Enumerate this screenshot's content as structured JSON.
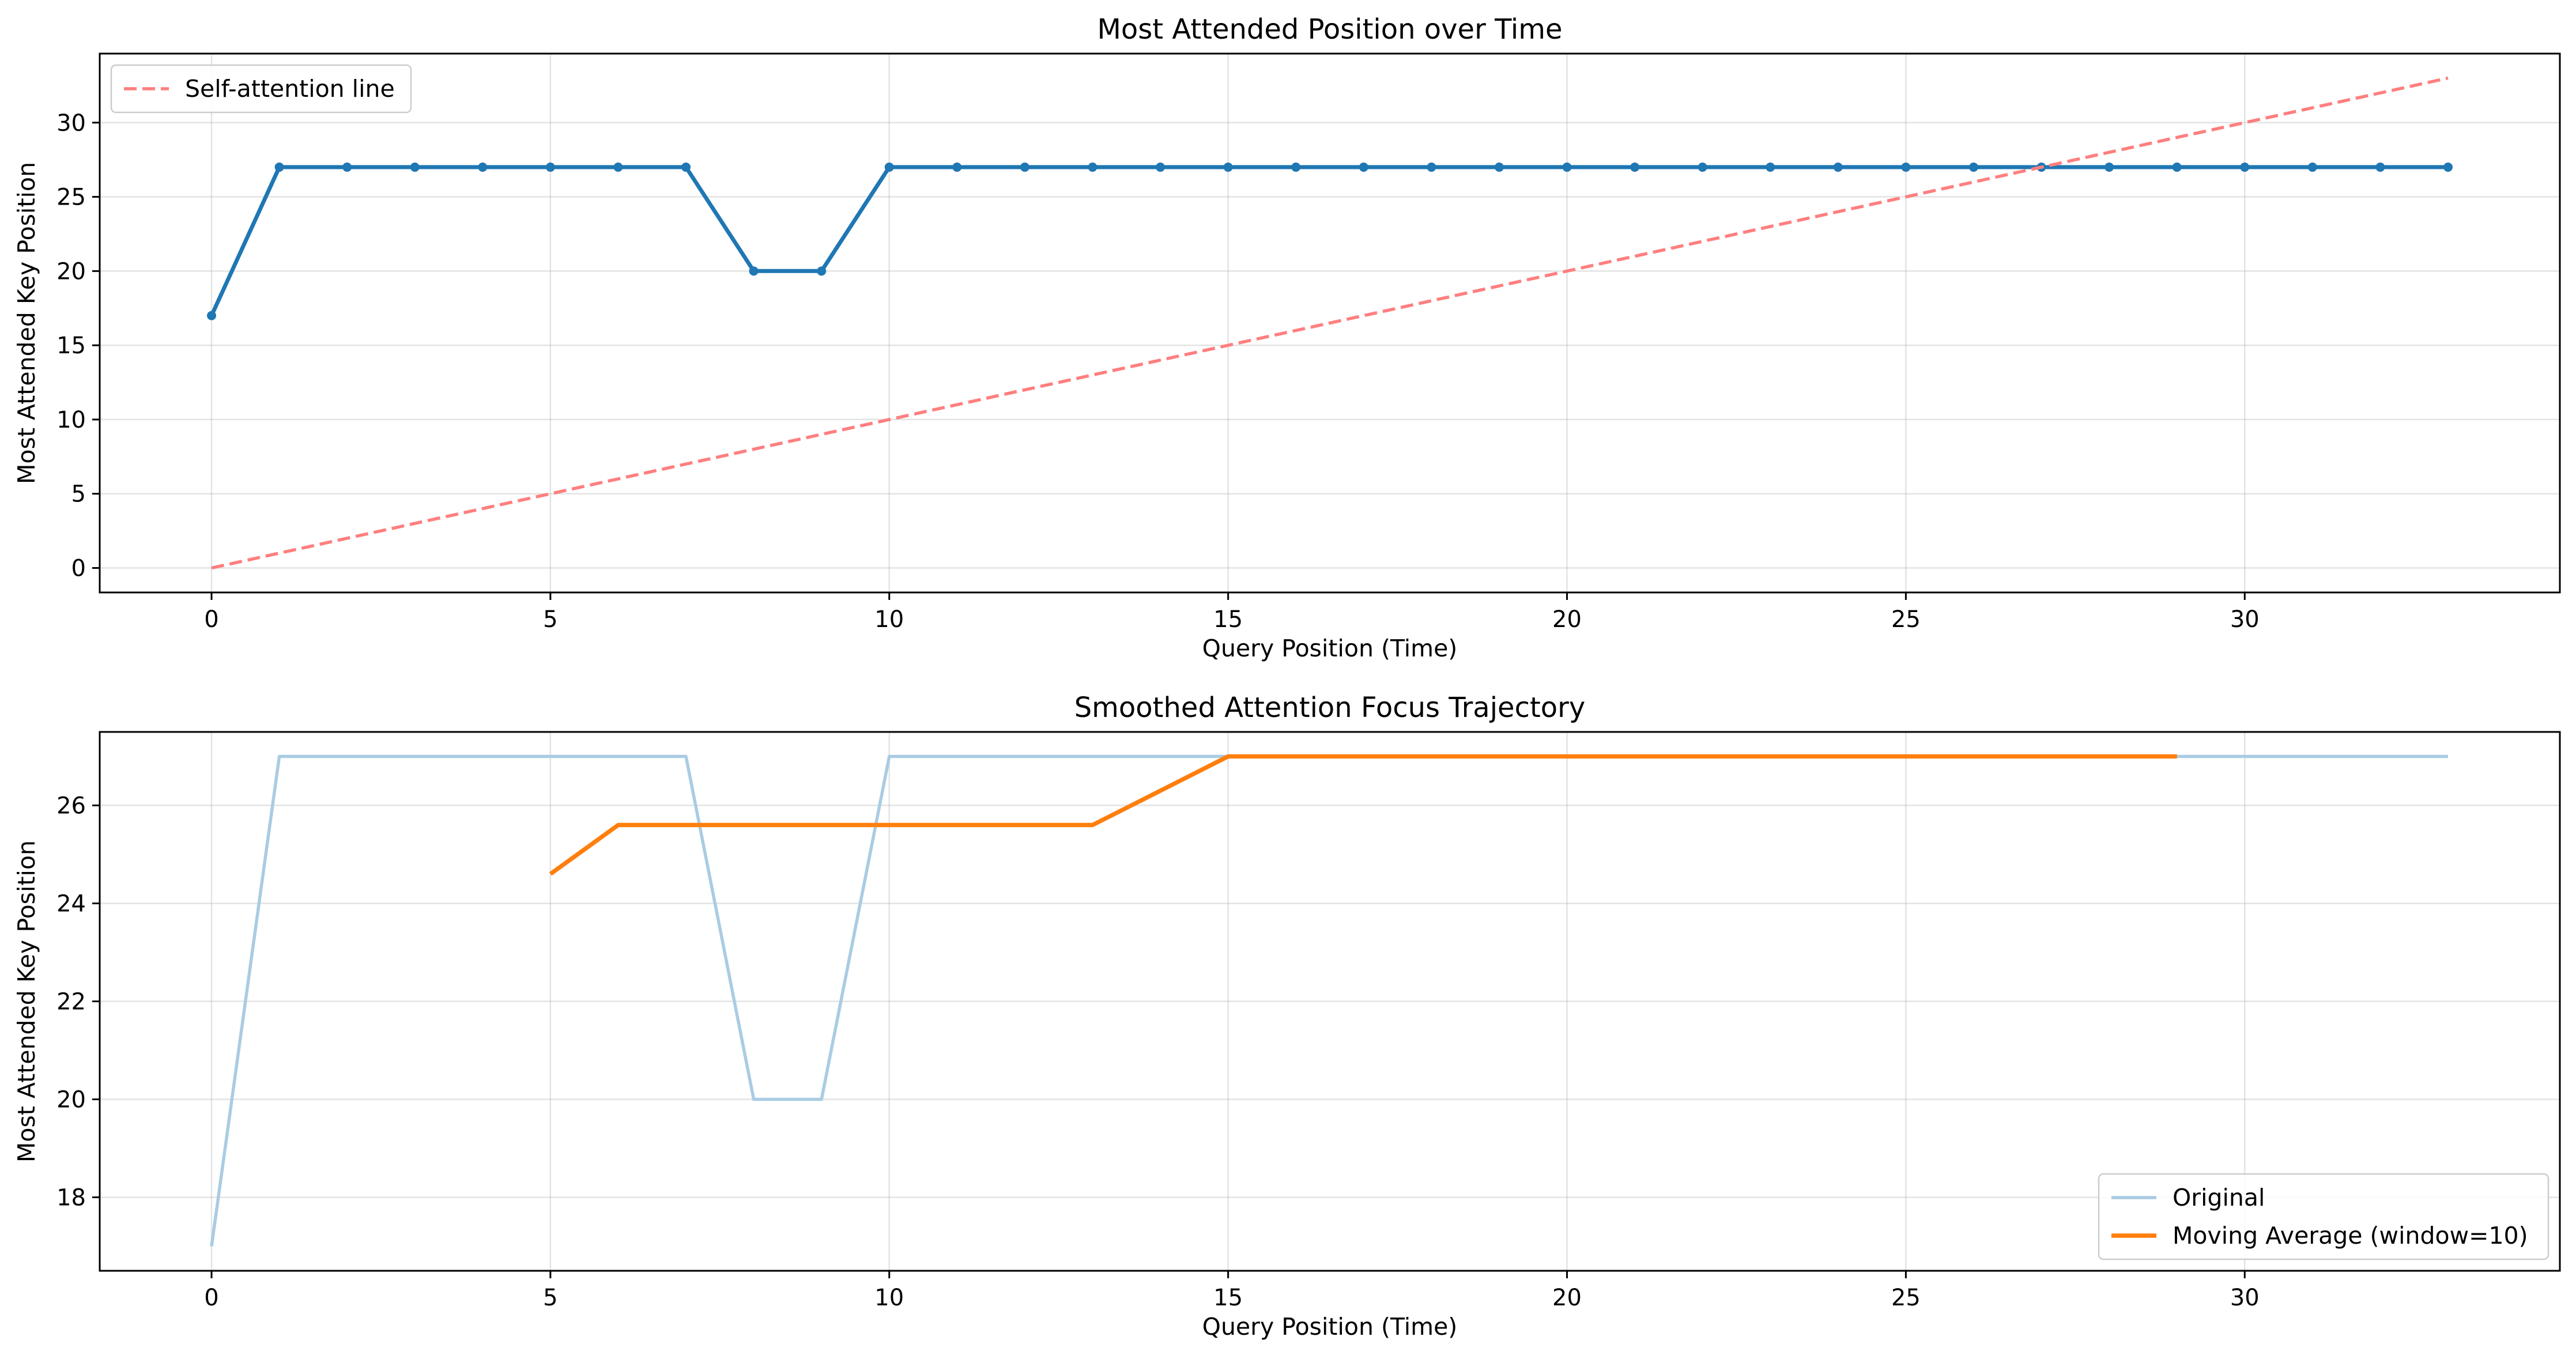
{
  "chart_data": [
    {
      "type": "line",
      "title": "Most Attended Position over Time",
      "xlabel": "Query Position (Time)",
      "ylabel": "Most Attended Key Position",
      "xlim": [
        -1.65,
        34.65
      ],
      "ylim": [
        -1.65,
        34.65
      ],
      "xticks": [
        0,
        5,
        10,
        15,
        20,
        25,
        30
      ],
      "yticks": [
        0,
        5,
        10,
        15,
        20,
        25,
        30
      ],
      "grid": true,
      "legend": "top-left",
      "series": [
        {
          "name": "",
          "color": "#1f77b4",
          "style": "solid-markers",
          "x": [
            0,
            1,
            2,
            3,
            4,
            5,
            6,
            7,
            8,
            9,
            10,
            11,
            12,
            13,
            14,
            15,
            16,
            17,
            18,
            19,
            20,
            21,
            22,
            23,
            24,
            25,
            26,
            27,
            28,
            29,
            30,
            31,
            32,
            33
          ],
          "y": [
            17,
            27,
            27,
            27,
            27,
            27,
            27,
            27,
            20,
            20,
            27,
            27,
            27,
            27,
            27,
            27,
            27,
            27,
            27,
            27,
            27,
            27,
            27,
            27,
            27,
            27,
            27,
            27,
            27,
            27,
            27,
            27,
            27,
            27
          ]
        },
        {
          "name": "Self-attention line",
          "color": "#ff7f7f",
          "style": "dashed",
          "x": [
            0,
            33
          ],
          "y": [
            0,
            33
          ]
        }
      ]
    },
    {
      "type": "line",
      "title": "Smoothed Attention Focus Trajectory",
      "xlabel": "Query Position (Time)",
      "ylabel": "Most Attended Key Position",
      "xlim": [
        -1.65,
        34.65
      ],
      "ylim": [
        16.5,
        27.5
      ],
      "xticks": [
        0,
        5,
        10,
        15,
        20,
        25,
        30
      ],
      "yticks": [
        18,
        20,
        22,
        24,
        26
      ],
      "grid": true,
      "legend": "bottom-right",
      "series": [
        {
          "name": "Original",
          "color": "#a9cce3",
          "style": "solid",
          "x": [
            0,
            1,
            2,
            3,
            4,
            5,
            6,
            7,
            8,
            9,
            10,
            11,
            12,
            13,
            14,
            15,
            16,
            17,
            18,
            19,
            20,
            21,
            22,
            23,
            24,
            25,
            26,
            27,
            28,
            29,
            30,
            31,
            32,
            33
          ],
          "y": [
            17,
            27,
            27,
            27,
            27,
            27,
            27,
            27,
            20,
            20,
            27,
            27,
            27,
            27,
            27,
            27,
            27,
            27,
            27,
            27,
            27,
            27,
            27,
            27,
            27,
            27,
            27,
            27,
            27,
            27,
            27,
            27,
            27,
            27
          ]
        },
        {
          "name": "Moving Average (window=10)",
          "color": "#ff7f0e",
          "style": "solid-thick",
          "x": [
            5,
            6,
            7,
            8,
            9,
            10,
            11,
            12,
            13,
            14,
            15,
            16,
            17,
            18,
            19,
            20,
            21,
            22,
            23,
            24,
            25,
            26,
            27,
            28,
            29
          ],
          "y": [
            24.6,
            25.6,
            25.6,
            25.6,
            25.6,
            25.6,
            25.6,
            25.6,
            25.6,
            26.3,
            27,
            27,
            27,
            27,
            27,
            27,
            27,
            27,
            27,
            27,
            27,
            27,
            27,
            27,
            27
          ]
        }
      ]
    }
  ]
}
